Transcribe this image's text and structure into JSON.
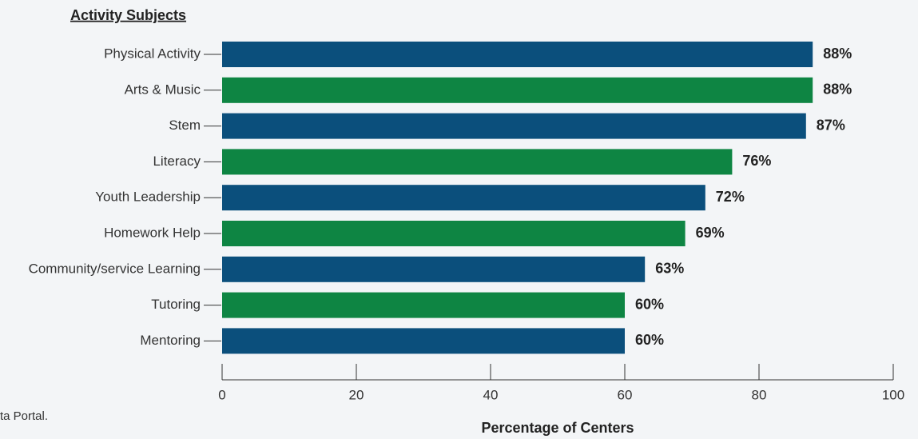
{
  "chart_data": {
    "type": "bar",
    "orientation": "horizontal",
    "title": "Activity Subjects",
    "categories": [
      "Physical Activity",
      "Arts & Music",
      "Stem",
      "Literacy",
      "Youth Leadership",
      "Homework Help",
      "Community/service Learning",
      "Tutoring",
      "Mentoring"
    ],
    "values": [
      88,
      88,
      87,
      76,
      72,
      69,
      63,
      60,
      60
    ],
    "value_labels": [
      "88%",
      "88%",
      "87%",
      "76%",
      "72%",
      "69%",
      "63%",
      "60%",
      "60%"
    ],
    "colors": [
      "#0b4f7c",
      "#0e8543",
      "#0b4f7c",
      "#0e8543",
      "#0b4f7c",
      "#0e8543",
      "#0b4f7c",
      "#0e8543",
      "#0b4f7c"
    ],
    "xlim": [
      0,
      100
    ],
    "xticks": [
      0,
      20,
      40,
      60,
      80,
      100
    ],
    "xlabel": "Percentage of Centers",
    "source": "ta Portal."
  }
}
